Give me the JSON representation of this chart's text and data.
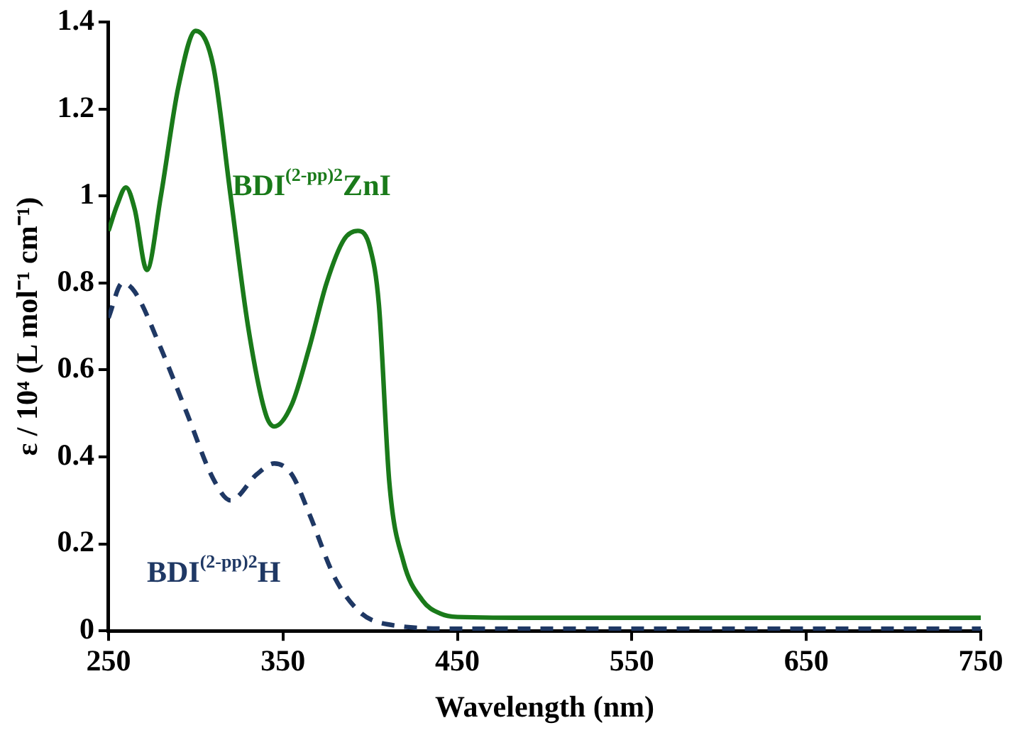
{
  "chart_data": {
    "type": "line",
    "xlabel": "Wavelength (nm)",
    "ylabel": "ε / 10⁴ (L mol⁻¹ cm⁻¹)",
    "xlim": [
      250,
      750
    ],
    "xticks": [
      250,
      350,
      450,
      550,
      650,
      750
    ],
    "ylim": [
      0,
      1.4
    ],
    "yticks": [
      0,
      0.2,
      0.4,
      0.6,
      0.8,
      1,
      1.2,
      1.4
    ],
    "grid": false,
    "legend": false,
    "marker": "none",
    "series": [
      {
        "name": "BDI$^{(2-pp)2}$ZnI",
        "color": "#1a7a1a",
        "line_style": "solid",
        "x": [
          250,
          255,
          260,
          265,
          272,
          280,
          290,
          300,
          310,
          320,
          330,
          340,
          345,
          355,
          365,
          375,
          385,
          393,
          400,
          405,
          411,
          419,
          430,
          440,
          450,
          500,
          550,
          600,
          650,
          700,
          750
        ],
        "values": [
          0.92,
          0.98,
          1.02,
          0.97,
          0.83,
          1.0,
          1.25,
          1.38,
          1.3,
          1.0,
          0.7,
          0.5,
          0.47,
          0.52,
          0.65,
          0.8,
          0.9,
          0.92,
          0.88,
          0.75,
          0.34,
          0.16,
          0.07,
          0.04,
          0.032,
          0.03,
          0.03,
          0.03,
          0.03,
          0.03,
          0.03
        ]
      },
      {
        "name": "BDI$^{(2-pp)2}$H",
        "color": "#1f3864",
        "line_style": "dashed",
        "x": [
          250,
          258,
          265,
          280,
          295,
          310,
          320,
          335,
          345,
          355,
          365,
          380,
          395,
          410,
          450,
          550,
          650,
          750
        ],
        "values": [
          0.72,
          0.8,
          0.78,
          0.65,
          0.5,
          0.35,
          0.3,
          0.36,
          0.385,
          0.36,
          0.27,
          0.12,
          0.04,
          0.015,
          0.005,
          0.005,
          0.005,
          0.005
        ]
      }
    ]
  }
}
